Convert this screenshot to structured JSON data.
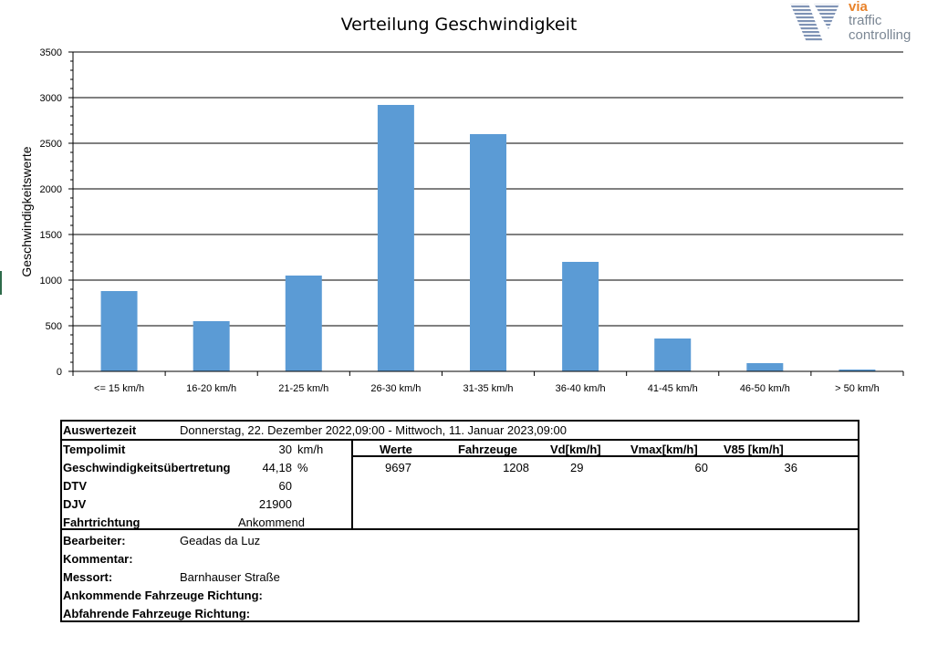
{
  "logo": {
    "via": "via",
    "traffic": "traffic",
    "controlling": "controlling"
  },
  "chart_data": {
    "type": "bar",
    "title": "Verteilung Geschwindigkeit",
    "xlabel": "",
    "ylabel": "Geschwindigkeitswerte",
    "ylim": [
      0,
      3500
    ],
    "yticks": [
      0,
      500,
      1000,
      1500,
      2000,
      2500,
      3000,
      3500
    ],
    "grid": true,
    "color": "#5b9bd5",
    "categories": [
      "<= 15 km/h",
      "16-20 km/h",
      "21-25 km/h",
      "26-30 km/h",
      "31-35 km/h",
      "36-40 km/h",
      "41-45 km/h",
      "46-50 km/h",
      "> 50 km/h"
    ],
    "values": [
      880,
      550,
      1050,
      2920,
      2600,
      1200,
      360,
      90,
      20
    ]
  },
  "info": {
    "auswertezeit_label": "Auswertezeit",
    "auswertezeit_value": "Donnerstag, 22. Dezember 2022,09:00  -  Mittwoch, 11. Januar 2023,09:00",
    "tempolimit_label": "Tempolimit",
    "tempolimit_value": "30",
    "tempolimit_unit": "km/h",
    "uebertretung_label": "Geschwindigkeitsübertretung",
    "uebertretung_value": "44,18",
    "uebertretung_unit": "%",
    "dtv_label": "DTV",
    "dtv_value": "60",
    "djv_label": "DJV",
    "djv_value": "21900",
    "fahrtrichtung_label": "Fahrtrichtung",
    "fahrtrichtung_value": "Ankommend",
    "stats_headers": {
      "werte": "Werte",
      "fahrzeuge": "Fahrzeuge",
      "vd": "Vd[km/h]",
      "vmax": "Vmax[km/h]",
      "v85": "V85 [km/h]"
    },
    "stats_values": {
      "werte": "9697",
      "fahrzeuge": "1208",
      "vd": "29",
      "vmax": "60",
      "v85": "36"
    },
    "bearbeiter_label": "Bearbeiter:",
    "bearbeiter_value": "Geadas da Luz",
    "kommentar_label": "Kommentar:",
    "messort_label": "Messort:",
    "messort_value": "Barnhauser Straße",
    "ankommende_label": "Ankommende Fahrzeuge Richtung:",
    "abfahrende_label": "Abfahrende Fahrzeuge Richtung:"
  }
}
